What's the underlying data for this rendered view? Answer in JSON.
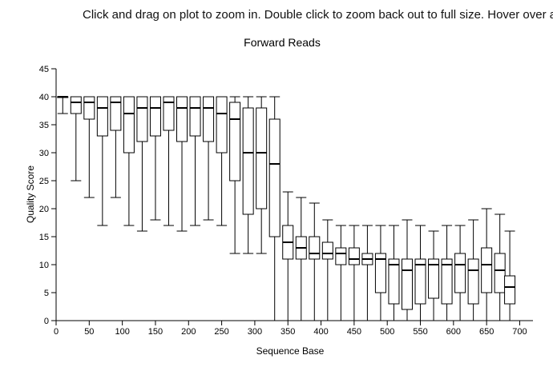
{
  "instructions": "Click and drag on plot to zoom in. Double click to zoom back out to full size. Hover over a box",
  "chart_data": {
    "type": "box",
    "title": "Forward Reads",
    "x_label": "Sequence Base",
    "y_label": "Quality Score",
    "x": [
      10,
      30,
      50,
      70,
      90,
      110,
      130,
      150,
      170,
      190,
      210,
      230,
      250,
      270,
      290,
      310,
      330,
      350,
      370,
      390,
      410,
      430,
      450,
      470,
      490,
      510,
      530,
      550,
      570,
      590,
      610,
      630,
      650,
      670,
      685
    ],
    "whisker_low": [
      37,
      25,
      22,
      17,
      22,
      17,
      16,
      18,
      17,
      16,
      17,
      18,
      17,
      12,
      12,
      12,
      0,
      0,
      0,
      0,
      0,
      0,
      0,
      0,
      0,
      0,
      0,
      0,
      0,
      0,
      0,
      0,
      0,
      0,
      0
    ],
    "q1": [
      40,
      37,
      36,
      33,
      34,
      30,
      32,
      33,
      34,
      32,
      33,
      32,
      30,
      25,
      19,
      20,
      15,
      11,
      11,
      11,
      11,
      10,
      10,
      10,
      5,
      3,
      2,
      3,
      4,
      3,
      5,
      3,
      5,
      5,
      3
    ],
    "median": [
      40,
      39,
      39,
      38,
      39,
      37,
      38,
      38,
      39,
      38,
      38,
      38,
      37,
      36,
      30,
      30,
      28,
      14,
      13,
      12,
      12,
      12,
      11,
      11,
      11,
      10,
      9,
      10,
      10,
      10,
      10,
      9,
      10,
      9,
      6
    ],
    "q3": [
      40,
      40,
      40,
      40,
      40,
      40,
      40,
      40,
      40,
      40,
      40,
      40,
      40,
      39,
      38,
      38,
      36,
      17,
      15,
      15,
      14,
      13,
      13,
      12,
      12,
      11,
      11,
      11,
      11,
      11,
      12,
      11,
      13,
      12,
      8
    ],
    "whisker_high": [
      40,
      40,
      40,
      40,
      40,
      40,
      40,
      40,
      40,
      40,
      40,
      40,
      40,
      40,
      40,
      40,
      40,
      23,
      22,
      21,
      18,
      17,
      17,
      17,
      17,
      17,
      18,
      17,
      16,
      17,
      17,
      18,
      20,
      19,
      16
    ],
    "xlim": [
      0,
      720
    ],
    "xticks": [
      0,
      50,
      100,
      150,
      200,
      250,
      300,
      350,
      400,
      450,
      500,
      550,
      600,
      650,
      700
    ],
    "ylim": [
      0,
      45
    ],
    "yticks": [
      0,
      5,
      10,
      15,
      20,
      25,
      30,
      35,
      40,
      45
    ],
    "color": "#000000"
  }
}
